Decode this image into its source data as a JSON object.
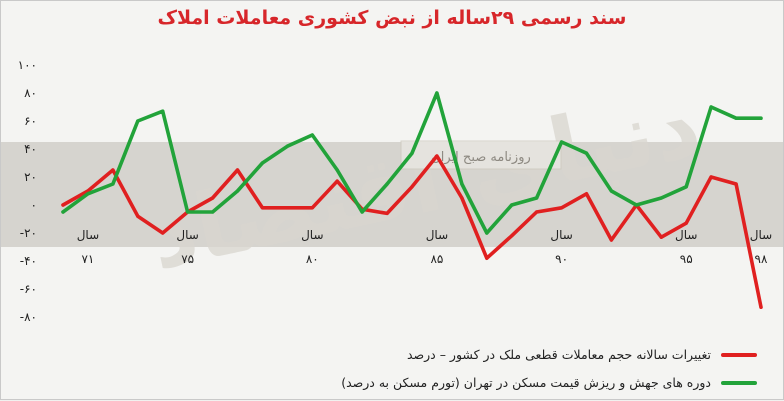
{
  "title": "سند رسمی ۲۹ساله از نبض کشوری معاملات املاک",
  "watermark": {
    "main": "دنیای اقتصاد",
    "sub": "روزنامه صبح ایران"
  },
  "chart_data": {
    "type": "line",
    "x_start": 70,
    "x_end": 98,
    "ylim": [
      -90,
      100
    ],
    "y_ticks": [
      "۱۰۰",
      "۸۰",
      "۶۰",
      "۴۰",
      "۲۰",
      "۰",
      "-۲۰",
      "-۴۰",
      "-۶۰",
      "-۸۰"
    ],
    "y_tick_values": [
      100,
      80,
      60,
      40,
      20,
      0,
      -20,
      -40,
      -60,
      -80
    ],
    "x_ticks": [
      {
        "x": 71,
        "word": "سال",
        "year": "۷۱"
      },
      {
        "x": 75,
        "word": "سال",
        "year": "۷۵"
      },
      {
        "x": 80,
        "word": "سال",
        "year": "۸۰"
      },
      {
        "x": 85,
        "word": "سال",
        "year": "۸۵"
      },
      {
        "x": 90,
        "word": "سال",
        "year": "۹۰"
      },
      {
        "x": 95,
        "word": "سال",
        "year": "۹۵"
      },
      {
        "x": 98,
        "word": "سال",
        "year": "۹۸"
      }
    ],
    "shaded_band": [
      -30,
      45
    ],
    "series": [
      {
        "name": "تغییرات سالانه حجم معاملات قطعی ملک در کشور – درصد",
        "color": "#e02020",
        "x": [
          70,
          71,
          72,
          73,
          74,
          75,
          76,
          77,
          78,
          79,
          80,
          81,
          82,
          83,
          84,
          85,
          86,
          87,
          88,
          89,
          90,
          91,
          92,
          93,
          94,
          95,
          96,
          97,
          98
        ],
        "values": [
          0,
          10,
          25,
          -8,
          -20,
          -5,
          5,
          25,
          -2,
          -2,
          -2,
          17,
          -3,
          -6,
          13,
          35,
          5,
          -38,
          -22,
          -5,
          -2,
          8,
          -25,
          0,
          -23,
          -13,
          20,
          15,
          -73
        ]
      },
      {
        "name": "دوره های جهش و ریزش قیمت مسکن در تهران (تورم مسکن به درصد)",
        "color": "#22a33a",
        "x": [
          70,
          71,
          72,
          73,
          74,
          75,
          76,
          77,
          78,
          79,
          80,
          81,
          82,
          83,
          84,
          85,
          86,
          87,
          88,
          89,
          90,
          91,
          92,
          93,
          94,
          95,
          96,
          97,
          98
        ],
        "values": [
          -5,
          8,
          15,
          60,
          67,
          -5,
          -5,
          10,
          30,
          42,
          50,
          25,
          -5,
          15,
          37,
          80,
          15,
          -20,
          0,
          5,
          45,
          37,
          10,
          0,
          5,
          13,
          70,
          62,
          62
        ]
      }
    ]
  }
}
